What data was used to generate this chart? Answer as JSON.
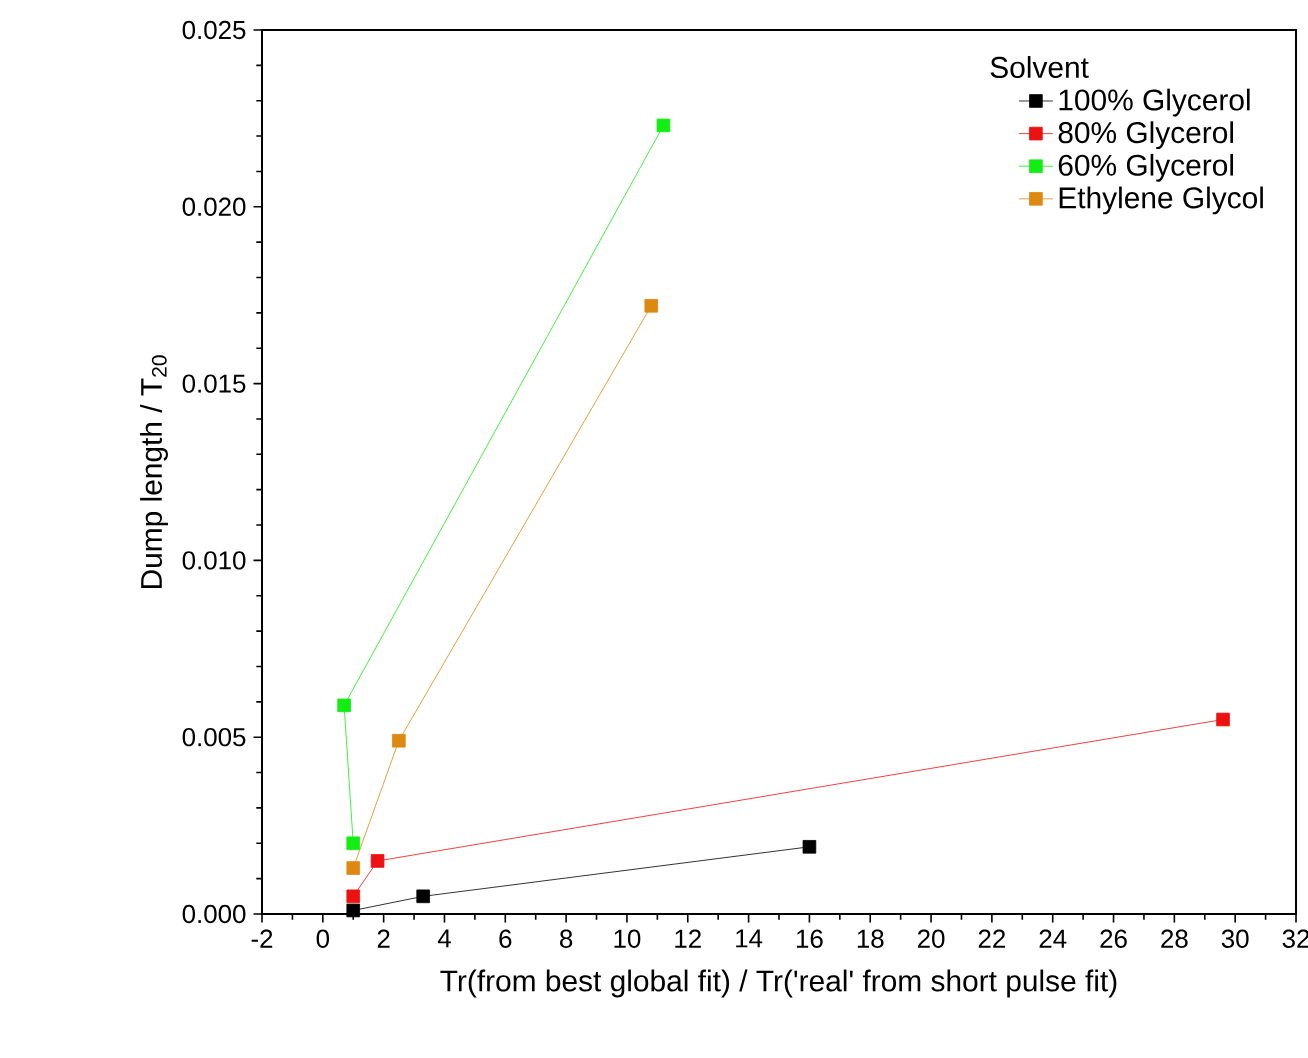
{
  "chart_data": {
    "type": "line",
    "xlabel": "Tr(from best global fit) / Tr('real' from short pulse fit)",
    "ylabel": "Dump length / T$_{20}$",
    "legend_title": "Solvent",
    "legend": "top right",
    "marker": "square",
    "line_style": "solid",
    "grid": false,
    "xlim": [
      -2,
      32
    ],
    "xticks": [
      -2,
      0,
      2,
      4,
      6,
      8,
      10,
      12,
      14,
      16,
      18,
      20,
      22,
      24,
      26,
      28,
      30,
      32
    ],
    "ylim": [
      0,
      0.025
    ],
    "yticks": [
      {
        "value": 0,
        "label": "0.000"
      },
      {
        "value": 0.005,
        "label": "0.005"
      },
      {
        "value": 0.01,
        "label": "0.010"
      },
      {
        "value": 0.015,
        "label": "0.015"
      },
      {
        "value": 0.02,
        "label": "0.020"
      },
      {
        "value": 0.025,
        "label": "0.025"
      }
    ],
    "series": [
      {
        "name": "100% Glycerol",
        "color": "#000000",
        "x": [
          1.0,
          3.3,
          16.0
        ],
        "values": [
          0.0001,
          0.0005,
          0.0019
        ]
      },
      {
        "name": "80% Glycerol",
        "color": "#ee1111",
        "x": [
          1.0,
          1.8,
          29.6
        ],
        "values": [
          0.0005,
          0.0015,
          0.0055
        ]
      },
      {
        "name": "60% Glycerol",
        "color": "#11ee11",
        "x": [
          1.0,
          0.7,
          11.2
        ],
        "values": [
          0.002,
          0.0059,
          0.0223
        ]
      },
      {
        "name": "Ethylene Glycol",
        "color": "#dd8811",
        "x": [
          1.0,
          2.5,
          10.8
        ],
        "values": [
          0.0013,
          0.0049,
          0.0172
        ]
      }
    ]
  }
}
